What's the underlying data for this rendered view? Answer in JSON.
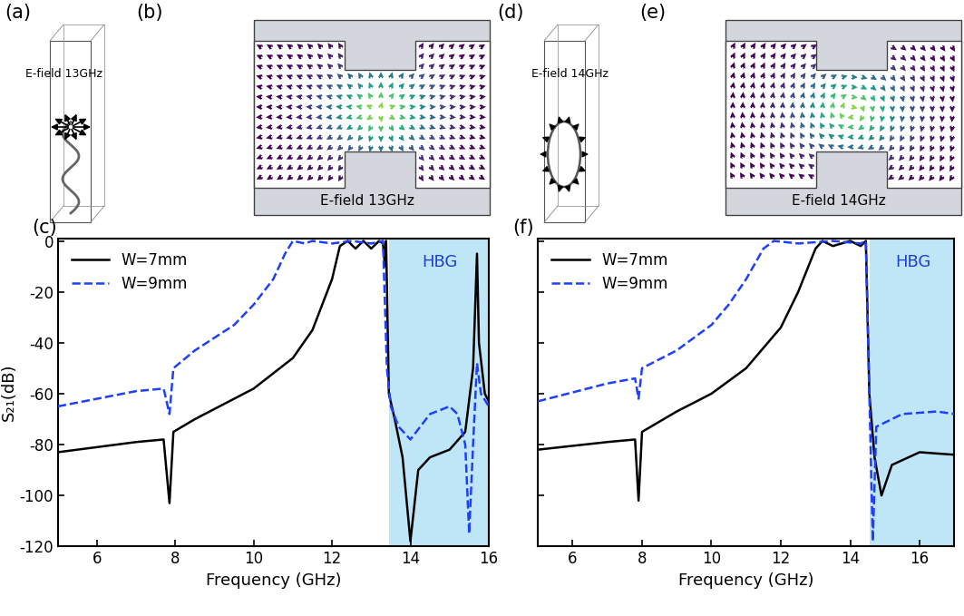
{
  "panels": [
    {
      "label": "(a)",
      "text": "E-field 13GHz"
    },
    {
      "label": "(b)",
      "text": "E-field 13GHz"
    },
    {
      "label": "(d)",
      "text": "E-field 14GHz"
    },
    {
      "label": "(e)",
      "text": "E-field 14GHz"
    }
  ],
  "chart_data": [
    {
      "type": "line",
      "title": "(c)",
      "x_label": "Frequency (GHz)",
      "y_label": "S₂₁(dB)",
      "xlim": [
        5,
        16
      ],
      "xticks": [
        6,
        8,
        10,
        12,
        14,
        16
      ],
      "ylim": [
        -120,
        1
      ],
      "yticks": [
        -120,
        -100,
        -80,
        -60,
        -40,
        -20,
        0
      ],
      "legend": "upper left",
      "shaded_region": [
        13.45,
        16
      ],
      "shaded_color": "#bfe6f7",
      "annotations": [
        {
          "text": "HBG",
          "x": 14.75,
          "y": -5,
          "color": "#1f3fd0"
        }
      ],
      "series": [
        {
          "name": "W=7mm",
          "color": "#000000",
          "line_style": "solid",
          "x": [
            5,
            6,
            7,
            7.7,
            7.85,
            7.95,
            8.5,
            9,
            10,
            11,
            11.5,
            12,
            12.2,
            12.4,
            12.6,
            12.8,
            13.0,
            13.2,
            13.3,
            13.35,
            13.38,
            13.45,
            13.6,
            13.8,
            14.0,
            14.2,
            14.5,
            15.0,
            15.4,
            15.6,
            15.7,
            15.75,
            15.9,
            16
          ],
          "values": [
            -83,
            -81,
            -79,
            -78,
            -103,
            -75,
            -70,
            -66,
            -58,
            -46,
            -35,
            -15,
            -2,
            0,
            -3,
            0,
            -3,
            0,
            -1,
            -10,
            0,
            -60,
            -70,
            -85,
            -118,
            -90,
            -85,
            -82,
            -75,
            -50,
            -5,
            -40,
            -60,
            -63
          ]
        },
        {
          "name": "W=9mm",
          "color": "#1f3fff",
          "line_style": "dashed",
          "x": [
            5,
            6,
            7,
            7.7,
            7.85,
            7.95,
            8.5,
            9,
            9.5,
            10,
            10.5,
            10.8,
            11,
            11.3,
            11.5,
            12,
            12.5,
            13,
            13.3,
            13.4,
            13.5,
            13.7,
            14,
            14.3,
            14.5,
            15,
            15.2,
            15.4,
            15.5,
            15.6,
            15.7,
            15.8,
            16
          ],
          "values": [
            -65,
            -62,
            -59,
            -58,
            -68,
            -50,
            -43,
            -38,
            -33,
            -25,
            -15,
            -5,
            0,
            -1,
            0,
            -1,
            0,
            -1,
            0,
            -50,
            -65,
            -73,
            -78,
            -72,
            -68,
            -65,
            -68,
            -80,
            -115,
            -80,
            -48,
            -60,
            -65
          ]
        }
      ]
    },
    {
      "type": "line",
      "title": "(f)",
      "x_label": "Frequency (GHz)",
      "xlim": [
        5,
        17
      ],
      "xticks": [
        6,
        8,
        10,
        12,
        14,
        16
      ],
      "ylim": [
        -120,
        1
      ],
      "yticks": [
        -120,
        -100,
        -80,
        -60,
        -40,
        -20,
        0
      ],
      "tick_labels": "x",
      "legend": "upper left",
      "shaded_region": [
        14.55,
        17
      ],
      "shaded_color": "#bfe6f7",
      "annotations": [
        {
          "text": "HBG",
          "x": 15.8,
          "y": -5,
          "color": "#1f3fd0"
        }
      ],
      "series": [
        {
          "name": "W=7mm",
          "color": "#000000",
          "line_style": "solid",
          "x": [
            5,
            7,
            7.8,
            7.9,
            8.0,
            9,
            10,
            11,
            12,
            12.5,
            13,
            13.2,
            13.5,
            14,
            14.3,
            14.45,
            14.55,
            14.7,
            14.9,
            15.2,
            16,
            17
          ],
          "values": [
            -82,
            -79,
            -78,
            -102,
            -75,
            -67,
            -60,
            -50,
            -34,
            -20,
            -3,
            0,
            -2,
            0,
            -2,
            0,
            -60,
            -85,
            -100,
            -88,
            -83,
            -84
          ]
        },
        {
          "name": "W=9mm",
          "color": "#1f3fff",
          "line_style": "dashed",
          "x": [
            5,
            7,
            7.8,
            7.9,
            8.0,
            9,
            10,
            10.5,
            11,
            11.5,
            11.8,
            12.5,
            13.5,
            14.3,
            14.45,
            14.55,
            14.65,
            14.75,
            15.5,
            16.5,
            17
          ],
          "values": [
            -63,
            -56,
            -54,
            -62,
            -50,
            -43,
            -33,
            -25,
            -15,
            -3,
            0,
            -1,
            0,
            -1,
            0,
            -60,
            -118,
            -73,
            -68,
            -67,
            -68
          ]
        }
      ]
    }
  ]
}
